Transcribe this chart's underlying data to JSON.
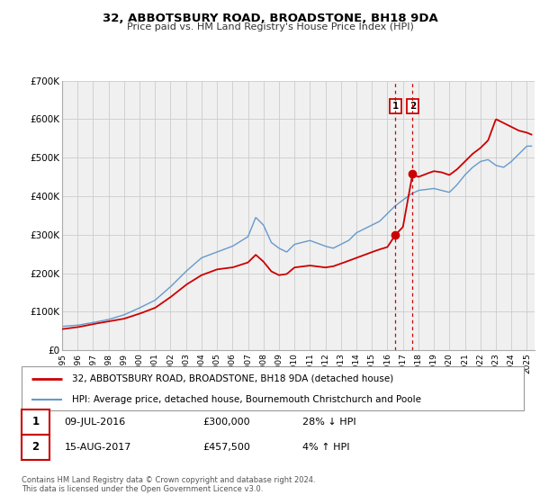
{
  "title": "32, ABBOTSBURY ROAD, BROADSTONE, BH18 9DA",
  "subtitle": "Price paid vs. HM Land Registry's House Price Index (HPI)",
  "legend_line1": "32, ABBOTSBURY ROAD, BROADSTONE, BH18 9DA (detached house)",
  "legend_line2": "HPI: Average price, detached house, Bournemouth Christchurch and Poole",
  "footer1": "Contains HM Land Registry data © Crown copyright and database right 2024.",
  "footer2": "This data is licensed under the Open Government Licence v3.0.",
  "sale1_label": "1",
  "sale1_date": "09-JUL-2016",
  "sale1_price": "£300,000",
  "sale1_hpi": "28% ↓ HPI",
  "sale1_year": 2016.52,
  "sale1_value": 300000,
  "sale2_label": "2",
  "sale2_date": "15-AUG-2017",
  "sale2_price": "£457,500",
  "sale2_hpi": "4% ↑ HPI",
  "sale2_year": 2017.62,
  "sale2_value": 457500,
  "hpi_color": "#6699cc",
  "price_color": "#cc0000",
  "dot_color": "#cc0000",
  "vline_color": "#cc0000",
  "grid_color": "#cccccc",
  "background_color": "#f0f0f0",
  "ylim": [
    0,
    700000
  ],
  "xlim_start": 1995.0,
  "xlim_end": 2025.5,
  "yticks": [
    0,
    100000,
    200000,
    300000,
    400000,
    500000,
    600000,
    700000
  ],
  "ytick_labels": [
    "£0",
    "£100K",
    "£200K",
    "£300K",
    "£400K",
    "£500K",
    "£600K",
    "£700K"
  ],
  "xticks": [
    1995,
    1996,
    1997,
    1998,
    1999,
    2000,
    2001,
    2002,
    2003,
    2004,
    2005,
    2006,
    2007,
    2008,
    2009,
    2010,
    2011,
    2012,
    2013,
    2014,
    2015,
    2016,
    2017,
    2018,
    2019,
    2020,
    2021,
    2022,
    2023,
    2024,
    2025
  ],
  "hpi_keypoints_x": [
    1995.0,
    1996.0,
    1997.0,
    1998.0,
    1999.0,
    2000.0,
    2001.0,
    2002.0,
    2003.0,
    2004.0,
    2005.0,
    2006.0,
    2007.0,
    2007.5,
    2008.0,
    2008.5,
    2009.0,
    2009.5,
    2010.0,
    2011.0,
    2012.0,
    2012.5,
    2013.0,
    2013.5,
    2014.0,
    2015.0,
    2015.5,
    2016.0,
    2016.5,
    2017.0,
    2017.5,
    2018.0,
    2019.0,
    2019.5,
    2020.0,
    2020.5,
    2021.0,
    2021.5,
    2022.0,
    2022.5,
    2023.0,
    2023.5,
    2024.0,
    2024.5,
    2025.0,
    2025.3
  ],
  "hpi_keypoints_y": [
    62000,
    65000,
    72000,
    80000,
    92000,
    110000,
    130000,
    165000,
    205000,
    240000,
    255000,
    270000,
    295000,
    345000,
    325000,
    280000,
    265000,
    255000,
    275000,
    285000,
    270000,
    265000,
    275000,
    285000,
    305000,
    325000,
    335000,
    355000,
    375000,
    390000,
    405000,
    415000,
    420000,
    415000,
    410000,
    430000,
    455000,
    475000,
    490000,
    495000,
    480000,
    475000,
    490000,
    510000,
    530000,
    530000
  ],
  "price_keypoints_x": [
    1995.0,
    1996.0,
    1997.0,
    1998.0,
    1999.0,
    2000.0,
    2001.0,
    2002.0,
    2003.0,
    2004.0,
    2005.0,
    2006.0,
    2007.0,
    2007.5,
    2008.0,
    2008.5,
    2009.0,
    2009.5,
    2010.0,
    2011.0,
    2012.0,
    2012.5,
    2013.0,
    2014.0,
    2015.0,
    2015.5,
    2016.0,
    2016.52,
    2017.0,
    2017.62,
    2018.0,
    2018.5,
    2019.0,
    2019.5,
    2020.0,
    2020.5,
    2021.0,
    2021.5,
    2022.0,
    2022.5,
    2023.0,
    2023.5,
    2024.0,
    2024.5,
    2025.0,
    2025.3
  ],
  "price_keypoints_y": [
    55000,
    60000,
    68000,
    75000,
    82000,
    95000,
    110000,
    138000,
    170000,
    195000,
    210000,
    215000,
    228000,
    248000,
    230000,
    205000,
    195000,
    198000,
    215000,
    220000,
    215000,
    218000,
    225000,
    240000,
    255000,
    262000,
    268000,
    300000,
    320000,
    457500,
    450000,
    458000,
    465000,
    462000,
    455000,
    470000,
    490000,
    510000,
    525000,
    545000,
    600000,
    590000,
    580000,
    570000,
    565000,
    560000
  ]
}
